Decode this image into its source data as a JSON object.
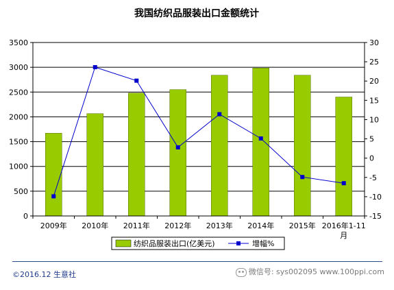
{
  "chart_data": {
    "type": "bar",
    "title": "我国纺织品服装出口金额统计",
    "categories": [
      "2009年",
      "2010年",
      "2011年",
      "2012年",
      "2013年",
      "2014年",
      "2015年",
      "2016年1-11月"
    ],
    "series": [
      {
        "name": "纺织品服装出口(亿美元)",
        "type": "bar",
        "axis": "left",
        "color": "#99cc00",
        "values": [
          1670,
          2065,
          2480,
          2550,
          2840,
          2985,
          2840,
          2400
        ]
      },
      {
        "name": "增幅%",
        "type": "line",
        "axis": "right",
        "color": "#0000cc",
        "values": [
          -9.9,
          23.6,
          20.1,
          2.8,
          11.4,
          5.1,
          -4.9,
          -6.5
        ]
      }
    ],
    "y_left": {
      "min": 0,
      "max": 3500,
      "ticks": [
        0,
        500,
        1000,
        1500,
        2000,
        2500,
        3000,
        3500
      ]
    },
    "y_right": {
      "min": -15,
      "max": 30,
      "ticks": [
        -15,
        -10,
        -5,
        0,
        5,
        10,
        15,
        20,
        25,
        30
      ]
    },
    "grid": "horizontal",
    "legend": "bottom"
  },
  "footer": {
    "source": "©2016.12 生意社",
    "wechat": "微信号: sys002095",
    "site": "www.100ppi.com"
  }
}
